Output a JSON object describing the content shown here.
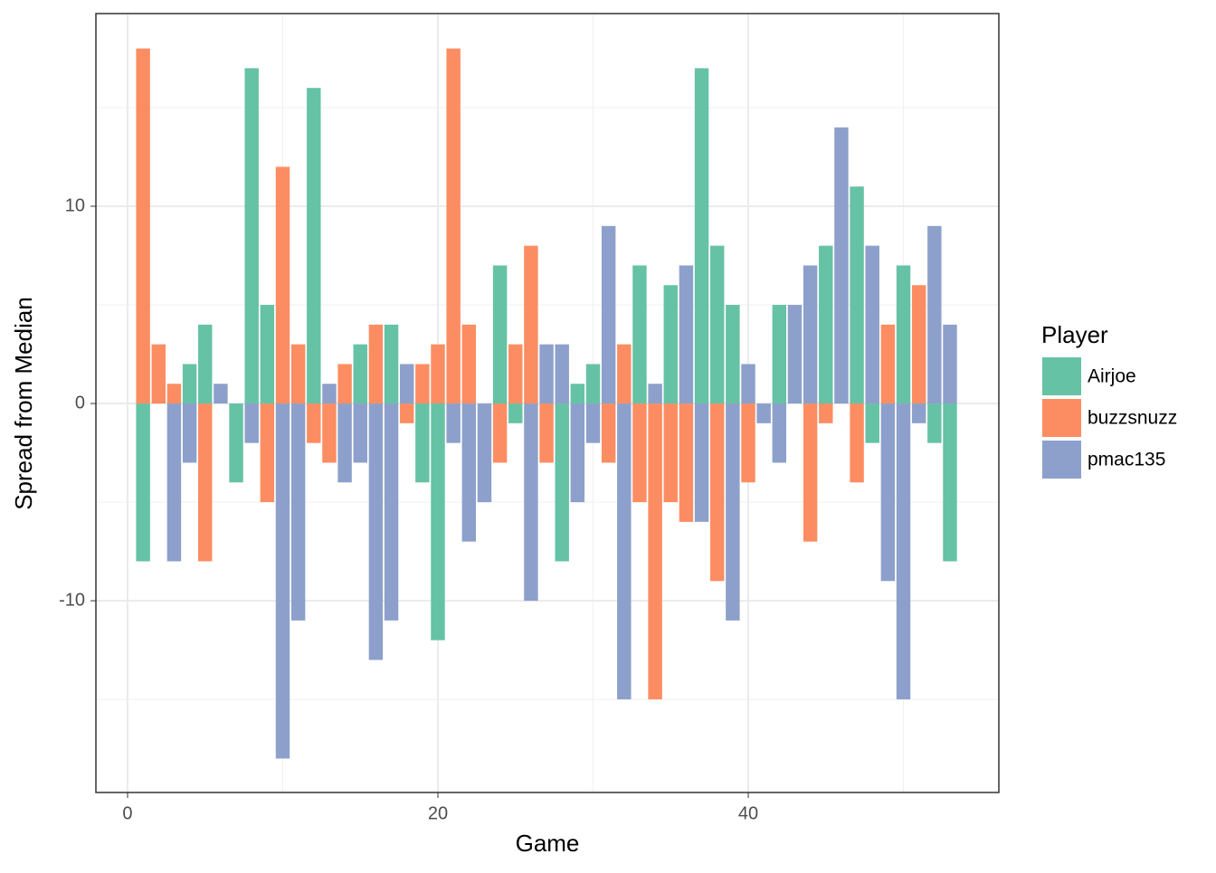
{
  "chart_data": {
    "type": "bar",
    "stacked": true,
    "x_label": "Game",
    "y_label": "Spread from Median",
    "legend_title": "Player",
    "legend_position": "right",
    "grid": true,
    "x": [
      1,
      2,
      3,
      4,
      5,
      6,
      7,
      8,
      9,
      10,
      11,
      12,
      13,
      14,
      15,
      16,
      17,
      18,
      19,
      20,
      21,
      22,
      23,
      24,
      25,
      26,
      27,
      28,
      29,
      30,
      31,
      32,
      33,
      34,
      35,
      36,
      37,
      38,
      39,
      40,
      41,
      42,
      43,
      44,
      45,
      46,
      47,
      48,
      49,
      50,
      51,
      52,
      53
    ],
    "series": [
      {
        "name": "Airjoe",
        "color": "#66c2a5",
        "values": [
          -8,
          0,
          0,
          2,
          4,
          0,
          -4,
          17,
          5,
          0,
          0,
          16,
          0,
          0,
          3,
          0,
          4,
          0,
          -4,
          -12,
          0,
          0,
          0,
          7,
          -1,
          0,
          0,
          -8,
          1,
          2,
          0,
          0,
          7,
          0,
          6,
          0,
          17,
          8,
          5,
          0,
          0,
          5,
          0,
          0,
          8,
          0,
          11,
          -2,
          0,
          7,
          0,
          -2,
          -8
        ]
      },
      {
        "name": "buzzsnuzz",
        "color": "#fc8d62",
        "values": [
          18,
          3,
          1,
          0,
          -8,
          0,
          0,
          0,
          -5,
          12,
          3,
          -2,
          -3,
          2,
          0,
          4,
          0,
          -1,
          2,
          3,
          18,
          4,
          0,
          -3,
          3,
          8,
          -3,
          0,
          0,
          0,
          -3,
          3,
          -5,
          -15,
          -5,
          -6,
          0,
          -9,
          0,
          -4,
          0,
          0,
          0,
          -7,
          -1,
          0,
          -4,
          0,
          4,
          0,
          6,
          0,
          0
        ]
      },
      {
        "name": "pmac135",
        "color": "#8da0cb",
        "values": [
          0,
          0,
          -8,
          -3,
          0,
          1,
          0,
          -2,
          0,
          -18,
          -11,
          0,
          1,
          -4,
          -3,
          -13,
          -11,
          2,
          0,
          0,
          -2,
          -7,
          -5,
          0,
          0,
          -10,
          3,
          3,
          -5,
          -2,
          9,
          -15,
          0,
          1,
          0,
          7,
          -6,
          0,
          -11,
          2,
          -1,
          -3,
          5,
          7,
          0,
          14,
          0,
          8,
          -9,
          -15,
          -1,
          9,
          4
        ]
      }
    ],
    "xlim": [
      -2.04,
      56.15
    ],
    "xticks": [
      0,
      20,
      40
    ],
    "ylim": [
      -19.72,
      19.77
    ],
    "yticks": [
      -10,
      0,
      10
    ]
  }
}
